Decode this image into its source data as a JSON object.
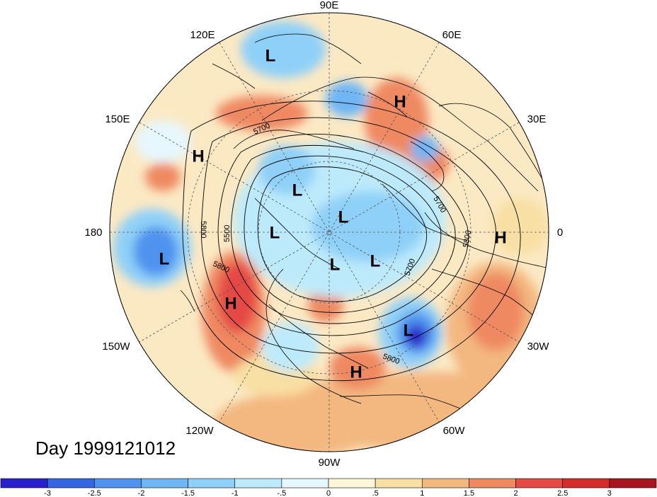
{
  "date_label": "Day 1999121012",
  "longitude_labels": {
    "lon_90e": "90E",
    "lon_60e": "60E",
    "lon_30e": "30E",
    "lon_0": "0",
    "lon_30w": "30W",
    "lon_60w": "60W",
    "lon_90w": "90W",
    "lon_120w": "120W",
    "lon_150w": "150W",
    "lon_180": "180",
    "lon_150e": "150E",
    "lon_120e": "120E"
  },
  "pressure_centers": [
    {
      "name": "low-siberia",
      "label": "L"
    },
    {
      "name": "high-scandinavia",
      "label": "H"
    },
    {
      "name": "high-okhotsk",
      "label": "H"
    },
    {
      "name": "low-east-siberia",
      "label": "L"
    },
    {
      "name": "low-arctic",
      "label": "L"
    },
    {
      "name": "low-alaska",
      "label": "L"
    },
    {
      "name": "low-pacific",
      "label": "L"
    },
    {
      "name": "high-africa",
      "label": "H"
    },
    {
      "name": "low-canada",
      "label": "L"
    },
    {
      "name": "low-greenland",
      "label": "L"
    },
    {
      "name": "high-pacific-coast",
      "label": "H"
    },
    {
      "name": "low-atlantic",
      "label": "L"
    },
    {
      "name": "high-caribbean",
      "label": "H"
    }
  ],
  "contour_labels": {
    "c5700_a": "5700",
    "c5700_b": "5700",
    "c5700_c": "5700",
    "c5800_a": "5800",
    "c5800_b": "5800",
    "c5800_c": "5800",
    "c5800_d": "5800",
    "c5500": "5500"
  },
  "colorbar": {
    "ticks": [
      "-3",
      "-2.5",
      "-2",
      "-1.5",
      "-1",
      "-.5",
      "0",
      ".5",
      "1",
      "1.5",
      "2",
      "2.5",
      "3"
    ],
    "colors": [
      "#2a1fcc",
      "#3466e4",
      "#4f93ef",
      "#6fb6f5",
      "#8fd0f8",
      "#bdeafb",
      "#e6f7fd",
      "#fdf6d8",
      "#f8dfa3",
      "#f3b780",
      "#ef8962",
      "#e54a45",
      "#d42b2b",
      "#a8141f"
    ]
  },
  "colors": {
    "land_outline": "#000000",
    "grid_line": "#555555",
    "background_field": "#fbe9c4"
  }
}
